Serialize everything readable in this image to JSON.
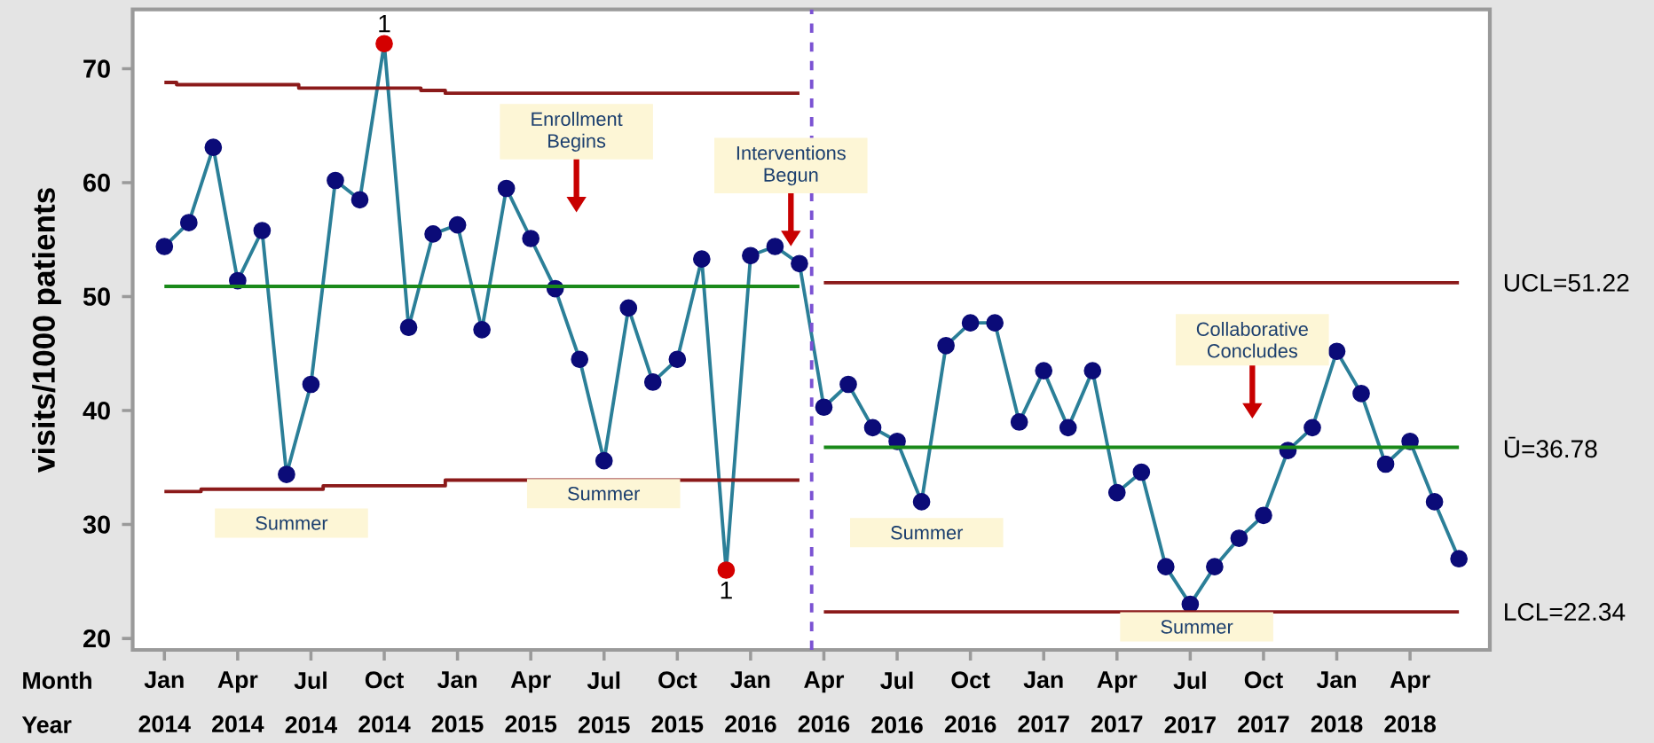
{
  "chart_data": {
    "type": "line",
    "ylabel": "visits/1000 patients",
    "x": [
      "2014-01",
      "2014-02",
      "2014-03",
      "2014-04",
      "2014-05",
      "2014-06",
      "2014-07",
      "2014-08",
      "2014-09",
      "2014-10",
      "2014-11",
      "2014-12",
      "2015-01",
      "2015-02",
      "2015-03",
      "2015-04",
      "2015-05",
      "2015-06",
      "2015-07",
      "2015-08",
      "2015-09",
      "2015-10",
      "2015-11",
      "2015-12",
      "2016-01",
      "2016-02",
      "2016-03",
      "2016-04",
      "2016-05",
      "2016-06",
      "2016-07",
      "2016-08",
      "2016-09",
      "2016-10",
      "2016-11",
      "2016-12",
      "2017-01",
      "2017-02",
      "2017-03",
      "2017-04",
      "2017-05",
      "2017-06",
      "2017-07",
      "2017-08",
      "2017-09",
      "2017-10",
      "2017-11",
      "2017-12",
      "2018-01",
      "2018-02",
      "2018-03",
      "2018-04",
      "2018-05",
      "2018-06"
    ],
    "series": [
      {
        "color": "#2b7f98",
        "marker": "circle",
        "values": [
          54.4,
          56.5,
          63.1,
          51.4,
          55.8,
          34.4,
          42.3,
          60.2,
          58.5,
          72.2,
          47.3,
          55.5,
          56.3,
          47.1,
          59.5,
          55.1,
          50.7,
          44.5,
          35.6,
          49.0,
          42.5,
          44.5,
          53.3,
          26.0,
          53.6,
          54.4,
          52.9,
          40.3,
          42.3,
          38.5,
          37.3,
          32.0,
          45.7,
          47.7,
          47.7,
          39.0,
          43.5,
          38.5,
          43.5,
          32.8,
          34.6,
          26.3,
          23.0,
          26.3,
          28.8,
          30.8,
          36.5,
          38.5,
          45.2,
          41.5,
          35.3,
          37.3,
          32.0,
          27.0
        ],
        "colors": [
          "#0b0b78",
          "#0b0b78",
          "#0b0b78",
          "#0b0b78",
          "#0b0b78",
          "#0b0b78",
          "#0b0b78",
          "#0b0b78",
          "#0b0b78",
          "#d40000",
          "#0b0b78",
          "#0b0b78",
          "#0b0b78",
          "#0b0b78",
          "#0b0b78",
          "#0b0b78",
          "#0b0b78",
          "#0b0b78",
          "#0b0b78",
          "#0b0b78",
          "#0b0b78",
          "#0b0b78",
          "#0b0b78",
          "#d40000",
          "#0b0b78",
          "#0b0b78",
          "#0b0b78",
          "#0b0b78",
          "#0b0b78",
          "#0b0b78",
          "#0b0b78",
          "#0b0b78",
          "#0b0b78",
          "#0b0b78",
          "#0b0b78",
          "#0b0b78",
          "#0b0b78",
          "#0b0b78",
          "#0b0b78",
          "#0b0b78",
          "#0b0b78",
          "#0b0b78",
          "#0b0b78",
          "#0b0b78",
          "#0b0b78",
          "#0b0b78",
          "#0b0b78",
          "#0b0b78",
          "#0b0b78",
          "#0b0b78",
          "#0b0b78",
          "#0b0b78",
          "#0b0b78",
          "#0b0b78"
        ]
      },
      {
        "type": "step",
        "color": "#8b1a1a",
        "values": [
          68.8,
          68.6,
          68.6,
          68.6,
          68.6,
          68.6,
          68.3,
          68.3,
          68.3,
          68.3,
          68.3,
          68.1,
          67.85,
          67.85,
          67.85,
          67.85,
          67.85,
          67.85,
          67.85,
          67.85,
          67.85,
          67.85,
          67.85,
          67.85,
          67.85,
          67.85,
          67.85,
          null,
          null,
          null,
          null,
          null,
          null,
          null,
          null,
          null,
          null,
          null,
          null,
          null,
          null,
          null,
          null,
          null,
          null,
          null,
          null,
          null,
          null,
          null,
          null,
          null,
          null,
          null
        ]
      },
      {
        "color": "#1a8a1a",
        "values": [
          50.9,
          50.9,
          50.9,
          50.9,
          50.9,
          50.9,
          50.9,
          50.9,
          50.9,
          50.9,
          50.9,
          50.9,
          50.9,
          50.9,
          50.9,
          50.9,
          50.9,
          50.9,
          50.9,
          50.9,
          50.9,
          50.9,
          50.9,
          50.9,
          50.9,
          50.9,
          50.9,
          null,
          null,
          null,
          null,
          null,
          null,
          null,
          null,
          null,
          null,
          null,
          null,
          null,
          null,
          null,
          null,
          null,
          null,
          null,
          null,
          null,
          null,
          null,
          null,
          null,
          null,
          null
        ]
      },
      {
        "type": "step",
        "color": "#8b1a1a",
        "values": [
          32.9,
          32.9,
          33.1,
          33.1,
          33.1,
          33.1,
          33.1,
          33.4,
          33.4,
          33.4,
          33.4,
          33.4,
          33.9,
          33.9,
          33.9,
          33.9,
          33.9,
          33.9,
          33.9,
          33.9,
          33.9,
          33.9,
          33.9,
          33.9,
          33.9,
          33.9,
          33.9,
          null,
          null,
          null,
          null,
          null,
          null,
          null,
          null,
          null,
          null,
          null,
          null,
          null,
          null,
          null,
          null,
          null,
          null,
          null,
          null,
          null,
          null,
          null,
          null,
          null,
          null,
          null
        ]
      },
      {
        "name": "UCL=51.22",
        "color": "#8b1a1a",
        "values": [
          null,
          null,
          null,
          null,
          null,
          null,
          null,
          null,
          null,
          null,
          null,
          null,
          null,
          null,
          null,
          null,
          null,
          null,
          null,
          null,
          null,
          null,
          null,
          null,
          null,
          null,
          null,
          51.22,
          51.22,
          51.22,
          51.22,
          51.22,
          51.22,
          51.22,
          51.22,
          51.22,
          51.22,
          51.22,
          51.22,
          51.22,
          51.22,
          51.22,
          51.22,
          51.22,
          51.22,
          51.22,
          51.22,
          51.22,
          51.22,
          51.22,
          51.22,
          51.22,
          51.22,
          51.22
        ]
      },
      {
        "name": "Ū=36.78",
        "color": "#1a8a1a",
        "values": [
          null,
          null,
          null,
          null,
          null,
          null,
          null,
          null,
          null,
          null,
          null,
          null,
          null,
          null,
          null,
          null,
          null,
          null,
          null,
          null,
          null,
          null,
          null,
          null,
          null,
          null,
          null,
          36.78,
          36.78,
          36.78,
          36.78,
          36.78,
          36.78,
          36.78,
          36.78,
          36.78,
          36.78,
          36.78,
          36.78,
          36.78,
          36.78,
          36.78,
          36.78,
          36.78,
          36.78,
          36.78,
          36.78,
          36.78,
          36.78,
          36.78,
          36.78,
          36.78,
          36.78,
          36.78
        ]
      },
      {
        "name": "LCL=22.34",
        "color": "#8b1a1a",
        "values": [
          null,
          null,
          null,
          null,
          null,
          null,
          null,
          null,
          null,
          null,
          null,
          null,
          null,
          null,
          null,
          null,
          null,
          null,
          null,
          null,
          null,
          null,
          null,
          null,
          null,
          null,
          null,
          22.34,
          22.34,
          22.34,
          22.34,
          22.34,
          22.34,
          22.34,
          22.34,
          22.34,
          22.34,
          22.34,
          22.34,
          22.34,
          22.34,
          22.34,
          22.34,
          22.34,
          22.34,
          22.34,
          22.34,
          22.34,
          22.34,
          22.34,
          22.34,
          22.34,
          22.34,
          22.34
        ]
      }
    ],
    "xlim": [
      "2013-11-22",
      "2018-07-09"
    ],
    "xticks": [
      {
        "value": "2014-01",
        "label": "Jan 2014"
      },
      {
        "value": "2014-04",
        "label": "Apr 2014"
      },
      {
        "value": "2014-07",
        "label": "Jul 2014"
      },
      {
        "value": "2014-10",
        "label": "Oct 2014"
      },
      {
        "value": "2015-01",
        "label": "Jan 2015"
      },
      {
        "value": "2015-04",
        "label": "Apr 2015"
      },
      {
        "value": "2015-07",
        "label": "Jul 2015"
      },
      {
        "value": "2015-10",
        "label": "Oct 2015"
      },
      {
        "value": "2016-01",
        "label": "Jan 2016"
      },
      {
        "value": "2016-04",
        "label": "Apr 2016"
      },
      {
        "value": "2016-07",
        "label": "Jul 2016"
      },
      {
        "value": "2016-10",
        "label": "Oct 2016"
      },
      {
        "value": "2017-01",
        "label": "Jan 2017"
      },
      {
        "value": "2017-04",
        "label": "Apr 2017"
      },
      {
        "value": "2017-07",
        "label": "Jul 2017"
      },
      {
        "value": "2017-10",
        "label": "Oct 2017"
      },
      {
        "value": "2018-01",
        "label": "Jan 2018"
      },
      {
        "value": "2018-04",
        "label": "Apr 2018"
      }
    ],
    "ylim": [
      19,
      75.2
    ],
    "yticks": [
      20,
      30,
      40,
      50,
      60,
      70
    ],
    "ref_lines": [
      {
        "axis": "x",
        "value": "2016-03-16",
        "color": "#7b52d3",
        "line_style": "dashed"
      }
    ],
    "annotations": [
      {
        "text": "1",
        "x": "2014-10",
        "y": 72.2
      },
      {
        "text": "1",
        "x": "2015-12",
        "y": 26.0
      },
      "Enrollment Begins",
      "Interventions Begun",
      "Collaborative Concludes",
      "Summer",
      "Summer",
      "Summer",
      "Summer",
      "Month",
      "Year"
    ]
  }
}
